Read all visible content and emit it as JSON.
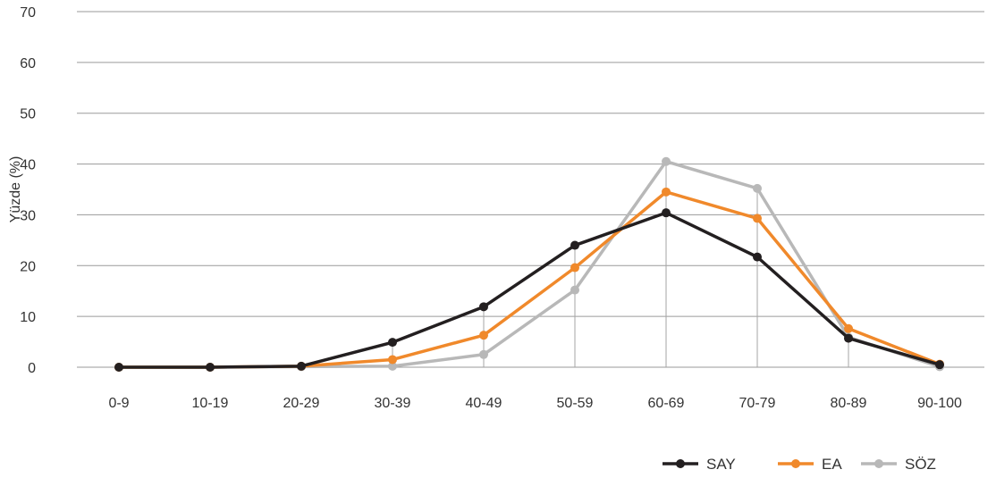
{
  "chart_data": {
    "type": "line",
    "categories": [
      "0-9",
      "10-19",
      "20-29",
      "30-39",
      "40-49",
      "50-59",
      "60-69",
      "70-79",
      "80-89",
      "90-100"
    ],
    "ylabel": "Yüzde (%)",
    "xlabel": "",
    "ylim": [
      0,
      70
    ],
    "yticks": [
      0,
      10,
      20,
      30,
      40,
      50,
      60,
      70
    ],
    "grid": "horizontal",
    "legend_position": "bottom-right",
    "series": [
      {
        "name": "SAY",
        "color": "#231f20",
        "values": [
          0,
          0,
          0.2,
          4.9,
          11.9,
          24.0,
          30.4,
          21.7,
          5.7,
          0.5
        ]
      },
      {
        "name": "EA",
        "color": "#f0892b",
        "values": [
          0,
          0,
          0.2,
          1.5,
          6.3,
          19.6,
          34.5,
          29.3,
          7.6,
          0.6
        ]
      },
      {
        "name": "SÖZ",
        "color": "#b8b8b8",
        "values": [
          0,
          0,
          0.1,
          0.2,
          2.5,
          15.2,
          40.5,
          35.2,
          5.9,
          0.1
        ]
      }
    ]
  }
}
